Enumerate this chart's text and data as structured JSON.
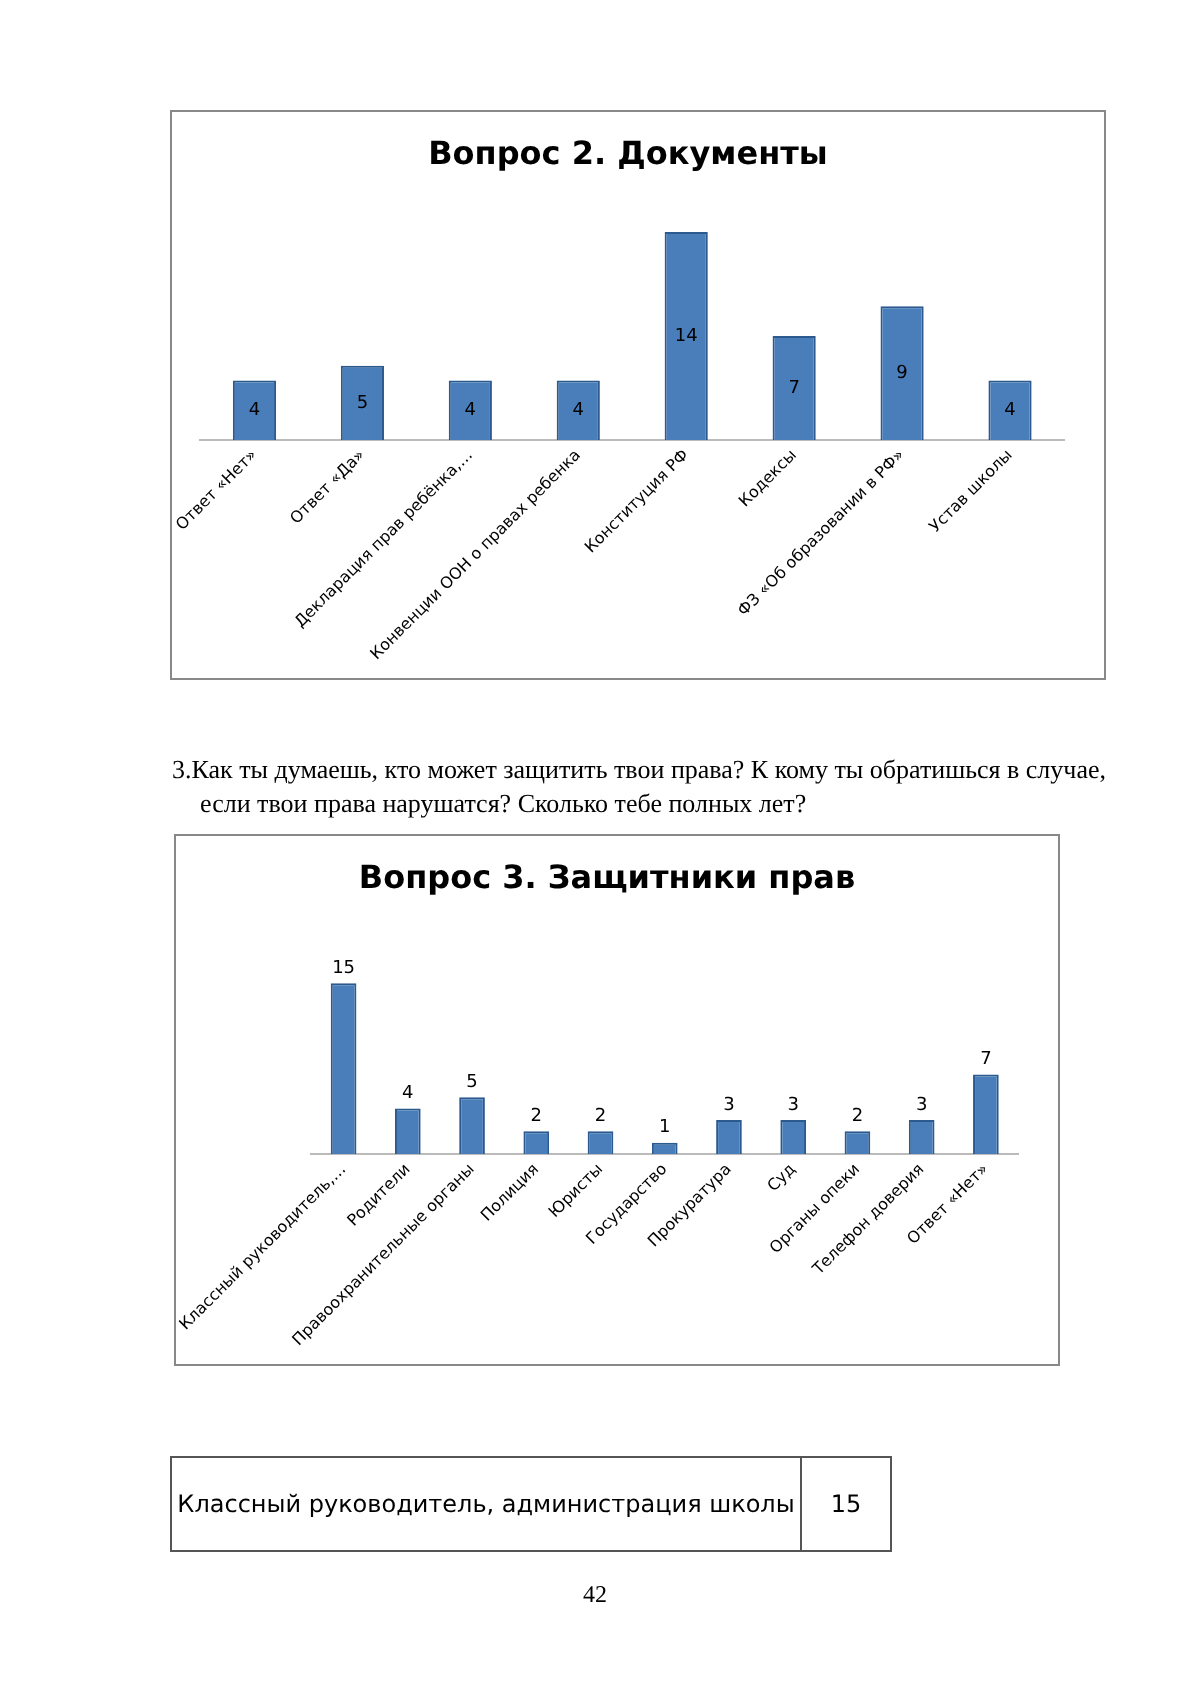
{
  "chart_data": [
    {
      "type": "bar",
      "title": "Вопрос 2. Документы",
      "categories": [
        "Ответ «Нет»",
        "Ответ «Да»",
        "Декларация прав ребёнка,…",
        "Конвенции ООН о правах ребенка",
        "Конституция РФ",
        "Кодексы",
        "ФЗ «Об образовании в РФ»",
        "Устав школы"
      ],
      "values": [
        4,
        5,
        4,
        4,
        14,
        7,
        9,
        4
      ],
      "color": "#4a7ebb",
      "data_labels": true,
      "grid": false,
      "legend": false,
      "tick_labels": "x"
    },
    {
      "type": "bar",
      "title": "Вопрос 3. Защитники прав",
      "categories": [
        "Классный руководитель,…",
        "Родители",
        "Правоохранительные органы",
        "Полиция",
        "Юристы",
        "Государство",
        "Прокуратура",
        "Суд",
        "Органы опеки",
        "Телефон доверия",
        "Ответ «Нет»"
      ],
      "values": [
        15,
        4,
        5,
        2,
        2,
        1,
        3,
        3,
        2,
        3,
        7
      ],
      "color": "#4a7ebb",
      "data_labels": true,
      "grid": false,
      "legend": false,
      "tick_labels": "x",
      "annotations": [
        "3.Как ты думаешь, кто может защитить твои права? К кому ты обратишься в случае, если твои права нарушатся? Сколько тебе полных лет?",
        "Классный руководитель, администрация школы",
        "15",
        "42"
      ]
    }
  ]
}
